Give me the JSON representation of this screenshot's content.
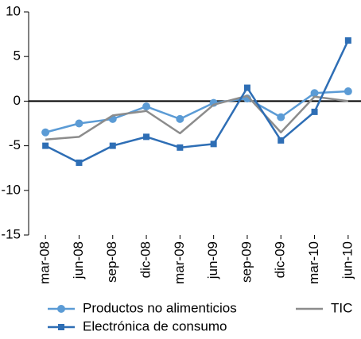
{
  "chart_data": {
    "type": "line",
    "categories": [
      "mar-08",
      "jun-08",
      "sep-08",
      "dic-08",
      "mar-09",
      "jun-09",
      "sep-09",
      "dic-09",
      "mar-10",
      "jun-10"
    ],
    "series": [
      {
        "name": "Productos no alimenticios",
        "color": "#5b9bd5",
        "marker": "circle",
        "values": [
          -3.5,
          -2.5,
          -2.0,
          -0.6,
          -2.0,
          -0.2,
          0.3,
          -1.8,
          0.9,
          1.1
        ]
      },
      {
        "name": "TIC",
        "color": "#8c8c8c",
        "marker": "none",
        "values": [
          -4.3,
          -4.0,
          -1.6,
          -1.1,
          -3.6,
          -0.4,
          0.6,
          -3.5,
          0.5,
          0.0
        ]
      },
      {
        "name": "Electrónica de consumo",
        "color": "#2e6eb5",
        "marker": "square",
        "values": [
          -5.0,
          -6.9,
          -5.0,
          -4.0,
          -5.2,
          -4.8,
          1.5,
          -4.4,
          -1.2,
          6.8
        ]
      }
    ],
    "ylim": [
      -15,
      10
    ],
    "yticks": [
      -15,
      -10,
      -5,
      0,
      5,
      10
    ],
    "grid": false
  }
}
